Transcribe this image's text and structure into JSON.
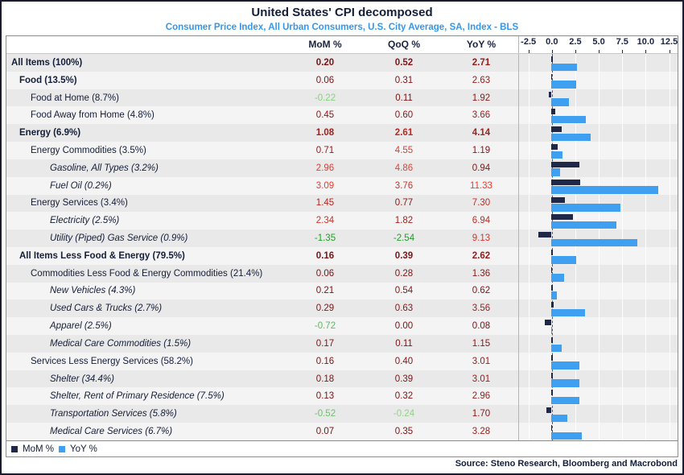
{
  "title": "United States' CPI decomposed",
  "subtitle": "Consumer Price Index, All Urban Consumers, U.S. City Average, SA, Index - BLS",
  "columns": {
    "mom": "MoM %",
    "qoq": "QoQ %",
    "yoy": "YoY %"
  },
  "source": "Source: Steno Research, Bloomberg and Macrobond",
  "legend": [
    {
      "label": "MoM %",
      "color": "#1f2849"
    },
    {
      "label": "YoY %",
      "color": "#3fa0f2"
    }
  ],
  "colors": {
    "mom_bar": "#1f2849",
    "yoy_bar": "#3fa0f2",
    "title": "#141e38",
    "subtitle": "#3697e8",
    "negative_green_max": "#1e9e28",
    "negative_green_min": "#9adb8f",
    "positive_red_min": "#7a1013",
    "positive_red_max": "#f23b2e"
  },
  "axis": {
    "tick_labels": [
      "-2.5",
      "0.0",
      "2.5",
      "5.0",
      "7.5",
      "10.0",
      "12.5"
    ],
    "tick_values": [
      -2.5,
      0.0,
      2.5,
      5.0,
      7.5,
      10.0,
      12.5
    ],
    "min": -3.5,
    "max": 13.4
  },
  "rows": [
    {
      "label": "All Items (100%)",
      "indent": 0,
      "bold": true,
      "italic": false,
      "vbold": true,
      "mom": {
        "v": "0.20",
        "c": "#7f1314"
      },
      "qoq": {
        "v": "0.52",
        "c": "#871516"
      },
      "yoy": {
        "v": "2.71",
        "c": "#971a19"
      }
    },
    {
      "label": "Food (13.5%)",
      "indent": 1,
      "bold": true,
      "italic": false,
      "vbold": false,
      "mom": {
        "v": "0.06",
        "c": "#7c1113"
      },
      "qoq": {
        "v": "0.31",
        "c": "#7f1314"
      },
      "yoy": {
        "v": "2.63",
        "c": "#961a19"
      }
    },
    {
      "label": "Food at Home (8.7%)",
      "indent": 2,
      "bold": false,
      "italic": false,
      "vbold": false,
      "mom": {
        "v": "-0.22",
        "c": "#86d17e"
      },
      "qoq": {
        "v": "0.11",
        "c": "#7d1214"
      },
      "yoy": {
        "v": "1.92",
        "c": "#8e1718"
      }
    },
    {
      "label": "Food Away from Home (4.8%)",
      "indent": 2,
      "bold": false,
      "italic": false,
      "vbold": false,
      "mom": {
        "v": "0.45",
        "c": "#8c1617"
      },
      "qoq": {
        "v": "0.60",
        "c": "#891617"
      },
      "yoy": {
        "v": "3.66",
        "c": "#a11e1c"
      }
    },
    {
      "label": "Energy (6.9%)",
      "indent": 1,
      "bold": true,
      "italic": false,
      "vbold": true,
      "mom": {
        "v": "1.08",
        "c": "#a41f1c"
      },
      "qoq": {
        "v": "2.61",
        "c": "#ba2722"
      },
      "yoy": {
        "v": "4.14",
        "c": "#a6201d"
      }
    },
    {
      "label": "Energy Commodities (3.5%)",
      "indent": 2,
      "bold": false,
      "italic": false,
      "vbold": false,
      "mom": {
        "v": "0.71",
        "c": "#961a19"
      },
      "qoq": {
        "v": "4.55",
        "c": "#ea382c"
      },
      "yoy": {
        "v": "1.19",
        "c": "#871516"
      }
    },
    {
      "label": "Gasoline, All Types (3.2%)",
      "indent": 3,
      "bold": false,
      "italic": true,
      "vbold": false,
      "mom": {
        "v": "2.96",
        "c": "#ed392d"
      },
      "qoq": {
        "v": "4.86",
        "c": "#f23b2e"
      },
      "yoy": {
        "v": "0.94",
        "c": "#841415"
      }
    },
    {
      "label": "Fuel Oil (0.2%)",
      "indent": 3,
      "bold": false,
      "italic": true,
      "vbold": false,
      "mom": {
        "v": "3.09",
        "c": "#f23b2e"
      },
      "qoq": {
        "v": "3.76",
        "c": "#d73128"
      },
      "yoy": {
        "v": "11.33",
        "c": "#f23b2e"
      }
    },
    {
      "label": "Energy Services (3.4%)",
      "indent": 2,
      "bold": false,
      "italic": false,
      "vbold": false,
      "mom": {
        "v": "1.45",
        "c": "#b22420"
      },
      "qoq": {
        "v": "0.77",
        "c": "#8d1717"
      },
      "yoy": {
        "v": "7.30",
        "c": "#c72c24"
      }
    },
    {
      "label": "Electricity (2.5%)",
      "indent": 3,
      "bold": false,
      "italic": true,
      "vbold": false,
      "mom": {
        "v": "2.34",
        "c": "#d53127"
      },
      "qoq": {
        "v": "1.82",
        "c": "#a7201d"
      },
      "yoy": {
        "v": "6.94",
        "c": "#c42a24"
      }
    },
    {
      "label": "Utility (Piped) Gas Service (0.9%)",
      "indent": 3,
      "bold": false,
      "italic": true,
      "vbold": false,
      "mom": {
        "v": "-1.35",
        "c": "#1e9e28"
      },
      "qoq": {
        "v": "-2.54",
        "c": "#1e9e28"
      },
      "yoy": {
        "v": "9.13",
        "c": "#db3329"
      }
    },
    {
      "label": "All Items Less Food & Energy (79.5%)",
      "indent": 1,
      "bold": true,
      "italic": false,
      "vbold": true,
      "mom": {
        "v": "0.16",
        "c": "#7e1214"
      },
      "qoq": {
        "v": "0.39",
        "c": "#811416"
      },
      "yoy": {
        "v": "2.62",
        "c": "#961a19"
      }
    },
    {
      "label": "Commodities Less Food & Energy Commodities (21.4%)",
      "indent": 2,
      "bold": false,
      "italic": false,
      "vbold": false,
      "mom": {
        "v": "0.06",
        "c": "#7c1113"
      },
      "qoq": {
        "v": "0.28",
        "c": "#7f1314"
      },
      "yoy": {
        "v": "1.36",
        "c": "#881617"
      }
    },
    {
      "label": "New Vehicles (4.3%)",
      "indent": 3,
      "bold": false,
      "italic": true,
      "vbold": false,
      "mom": {
        "v": "0.21",
        "c": "#7f1314"
      },
      "qoq": {
        "v": "0.54",
        "c": "#871516"
      },
      "yoy": {
        "v": "0.62",
        "c": "#811214"
      }
    },
    {
      "label": "Used Cars & Trucks (2.7%)",
      "indent": 3,
      "bold": false,
      "italic": true,
      "vbold": false,
      "mom": {
        "v": "0.29",
        "c": "#821415"
      },
      "qoq": {
        "v": "0.63",
        "c": "#891617"
      },
      "yoy": {
        "v": "3.56",
        "c": "#a01d1c"
      }
    },
    {
      "label": "Apparel (2.5%)",
      "indent": 3,
      "bold": false,
      "italic": true,
      "vbold": false,
      "mom": {
        "v": "-0.72",
        "c": "#58bb58"
      },
      "qoq": {
        "v": "0.00",
        "c": "#7a1013"
      },
      "yoy": {
        "v": "0.08",
        "c": "#7b1013"
      }
    },
    {
      "label": "Medical Care Commodities (1.5%)",
      "indent": 3,
      "bold": false,
      "italic": true,
      "vbold": false,
      "mom": {
        "v": "0.17",
        "c": "#7e1314"
      },
      "qoq": {
        "v": "0.11",
        "c": "#7d1214"
      },
      "yoy": {
        "v": "1.15",
        "c": "#861516"
      }
    },
    {
      "label": "Services Less Energy Services (58.2%)",
      "indent": 2,
      "bold": false,
      "italic": false,
      "vbold": false,
      "mom": {
        "v": "0.16",
        "c": "#7e1214"
      },
      "qoq": {
        "v": "0.40",
        "c": "#811416"
      },
      "yoy": {
        "v": "3.01",
        "c": "#9a1b1a"
      }
    },
    {
      "label": "Shelter (34.4%)",
      "indent": 3,
      "bold": false,
      "italic": true,
      "vbold": false,
      "mom": {
        "v": "0.18",
        "c": "#7e1314"
      },
      "qoq": {
        "v": "0.39",
        "c": "#811416"
      },
      "yoy": {
        "v": "3.01",
        "c": "#9a1b1a"
      }
    },
    {
      "label": "Shelter, Rent of Primary Residence (7.5%)",
      "indent": 3,
      "bold": false,
      "italic": true,
      "vbold": false,
      "mom": {
        "v": "0.13",
        "c": "#7d1214"
      },
      "qoq": {
        "v": "0.32",
        "c": "#801315"
      },
      "yoy": {
        "v": "2.96",
        "c": "#991b1a"
      }
    },
    {
      "label": "Transportation Services (5.8%)",
      "indent": 3,
      "bold": false,
      "italic": true,
      "vbold": false,
      "mom": {
        "v": "-0.52",
        "c": "#6ac467"
      },
      "qoq": {
        "v": "-0.24",
        "c": "#8ed585"
      },
      "yoy": {
        "v": "1.70",
        "c": "#8c1717"
      }
    },
    {
      "label": "Medical Care Services (6.7%)",
      "indent": 3,
      "bold": false,
      "italic": true,
      "vbold": false,
      "mom": {
        "v": "0.07",
        "c": "#7c1113"
      },
      "qoq": {
        "v": "0.35",
        "c": "#801415"
      },
      "yoy": {
        "v": "3.28",
        "c": "#9d1c1b"
      }
    }
  ],
  "chart_data": {
    "type": "bar",
    "orientation": "horizontal",
    "title": "United States' CPI decomposed",
    "subtitle": "Consumer Price Index, All Urban Consumers, U.S. City Average, SA, Index - BLS",
    "categories": [
      "All Items (100%)",
      "Food (13.5%)",
      "Food at Home (8.7%)",
      "Food Away from Home (4.8%)",
      "Energy (6.9%)",
      "Energy Commodities (3.5%)",
      "Gasoline, All Types (3.2%)",
      "Fuel Oil (0.2%)",
      "Energy Services (3.4%)",
      "Electricity (2.5%)",
      "Utility (Piped) Gas Service (0.9%)",
      "All Items Less Food & Energy (79.5%)",
      "Commodities Less Food & Energy Commodities (21.4%)",
      "New Vehicles (4.3%)",
      "Used Cars & Trucks (2.7%)",
      "Apparel (2.5%)",
      "Medical Care Commodities (1.5%)",
      "Services Less Energy Services (58.2%)",
      "Shelter (34.4%)",
      "Shelter, Rent of Primary Residence (7.5%)",
      "Transportation Services (5.8%)",
      "Medical Care Services (6.7%)"
    ],
    "series": [
      {
        "name": "MoM %",
        "values": [
          0.2,
          0.06,
          -0.22,
          0.45,
          1.08,
          0.71,
          2.96,
          3.09,
          1.45,
          2.34,
          -1.35,
          0.16,
          0.06,
          0.21,
          0.29,
          -0.72,
          0.17,
          0.16,
          0.18,
          0.13,
          -0.52,
          0.07
        ]
      },
      {
        "name": "QoQ %",
        "values": [
          0.52,
          0.31,
          0.11,
          0.6,
          2.61,
          4.55,
          4.86,
          3.76,
          0.77,
          1.82,
          -2.54,
          0.39,
          0.28,
          0.54,
          0.63,
          0.0,
          0.11,
          0.4,
          0.39,
          0.32,
          -0.24,
          0.35
        ]
      },
      {
        "name": "YoY %",
        "values": [
          2.71,
          2.63,
          1.92,
          3.66,
          4.14,
          1.19,
          0.94,
          11.33,
          7.3,
          6.94,
          9.13,
          2.62,
          1.36,
          0.62,
          3.56,
          0.08,
          1.15,
          3.01,
          3.01,
          2.96,
          1.7,
          3.28
        ]
      }
    ],
    "plotted_series": [
      "MoM %",
      "YoY %"
    ],
    "xlim": [
      -3.5,
      13.4
    ],
    "x_ticks": [
      -2.5,
      0.0,
      2.5,
      5.0,
      7.5,
      10.0,
      12.5
    ],
    "grid": true,
    "legend_position": "bottom-left"
  }
}
